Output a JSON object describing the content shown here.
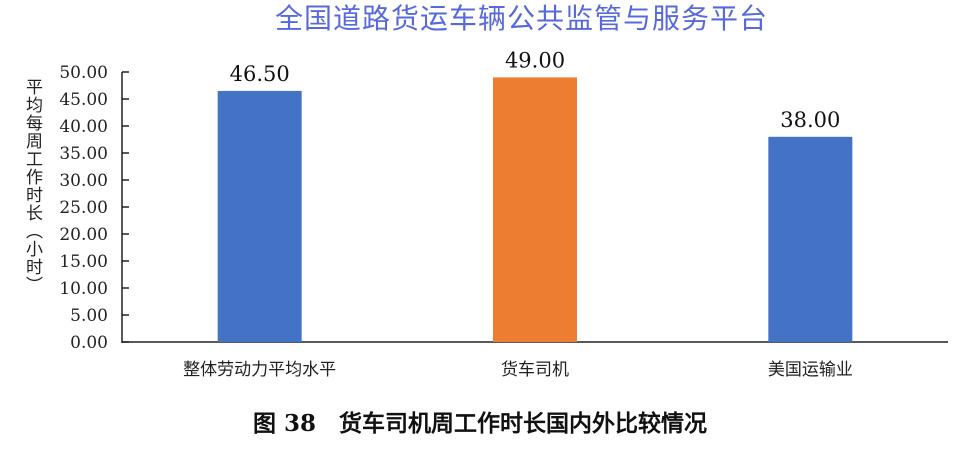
{
  "watermark": "全国道路货运车辆公共监管与服务平台",
  "caption": "图 38　货车司机周工作时长国内外比较情况",
  "chart_data": {
    "type": "bar",
    "categories": [
      "整体劳动力平均水平",
      "货车司机",
      "美国运输业"
    ],
    "values": [
      46.5,
      49.0,
      38.0
    ],
    "data_labels": [
      "46.50",
      "49.00",
      "38.00"
    ],
    "colors": [
      "#4472C4",
      "#ED7D31",
      "#4472C4"
    ],
    "title": "",
    "xlabel": "",
    "ylabel": "平均每周工作时长（小时）",
    "ylim": [
      0,
      50
    ],
    "yticks": [
      "0.00",
      "5.00",
      "10.00",
      "15.00",
      "20.00",
      "25.00",
      "30.00",
      "35.00",
      "40.00",
      "45.00",
      "50.00"
    ],
    "grid": false,
    "legend": "none"
  }
}
